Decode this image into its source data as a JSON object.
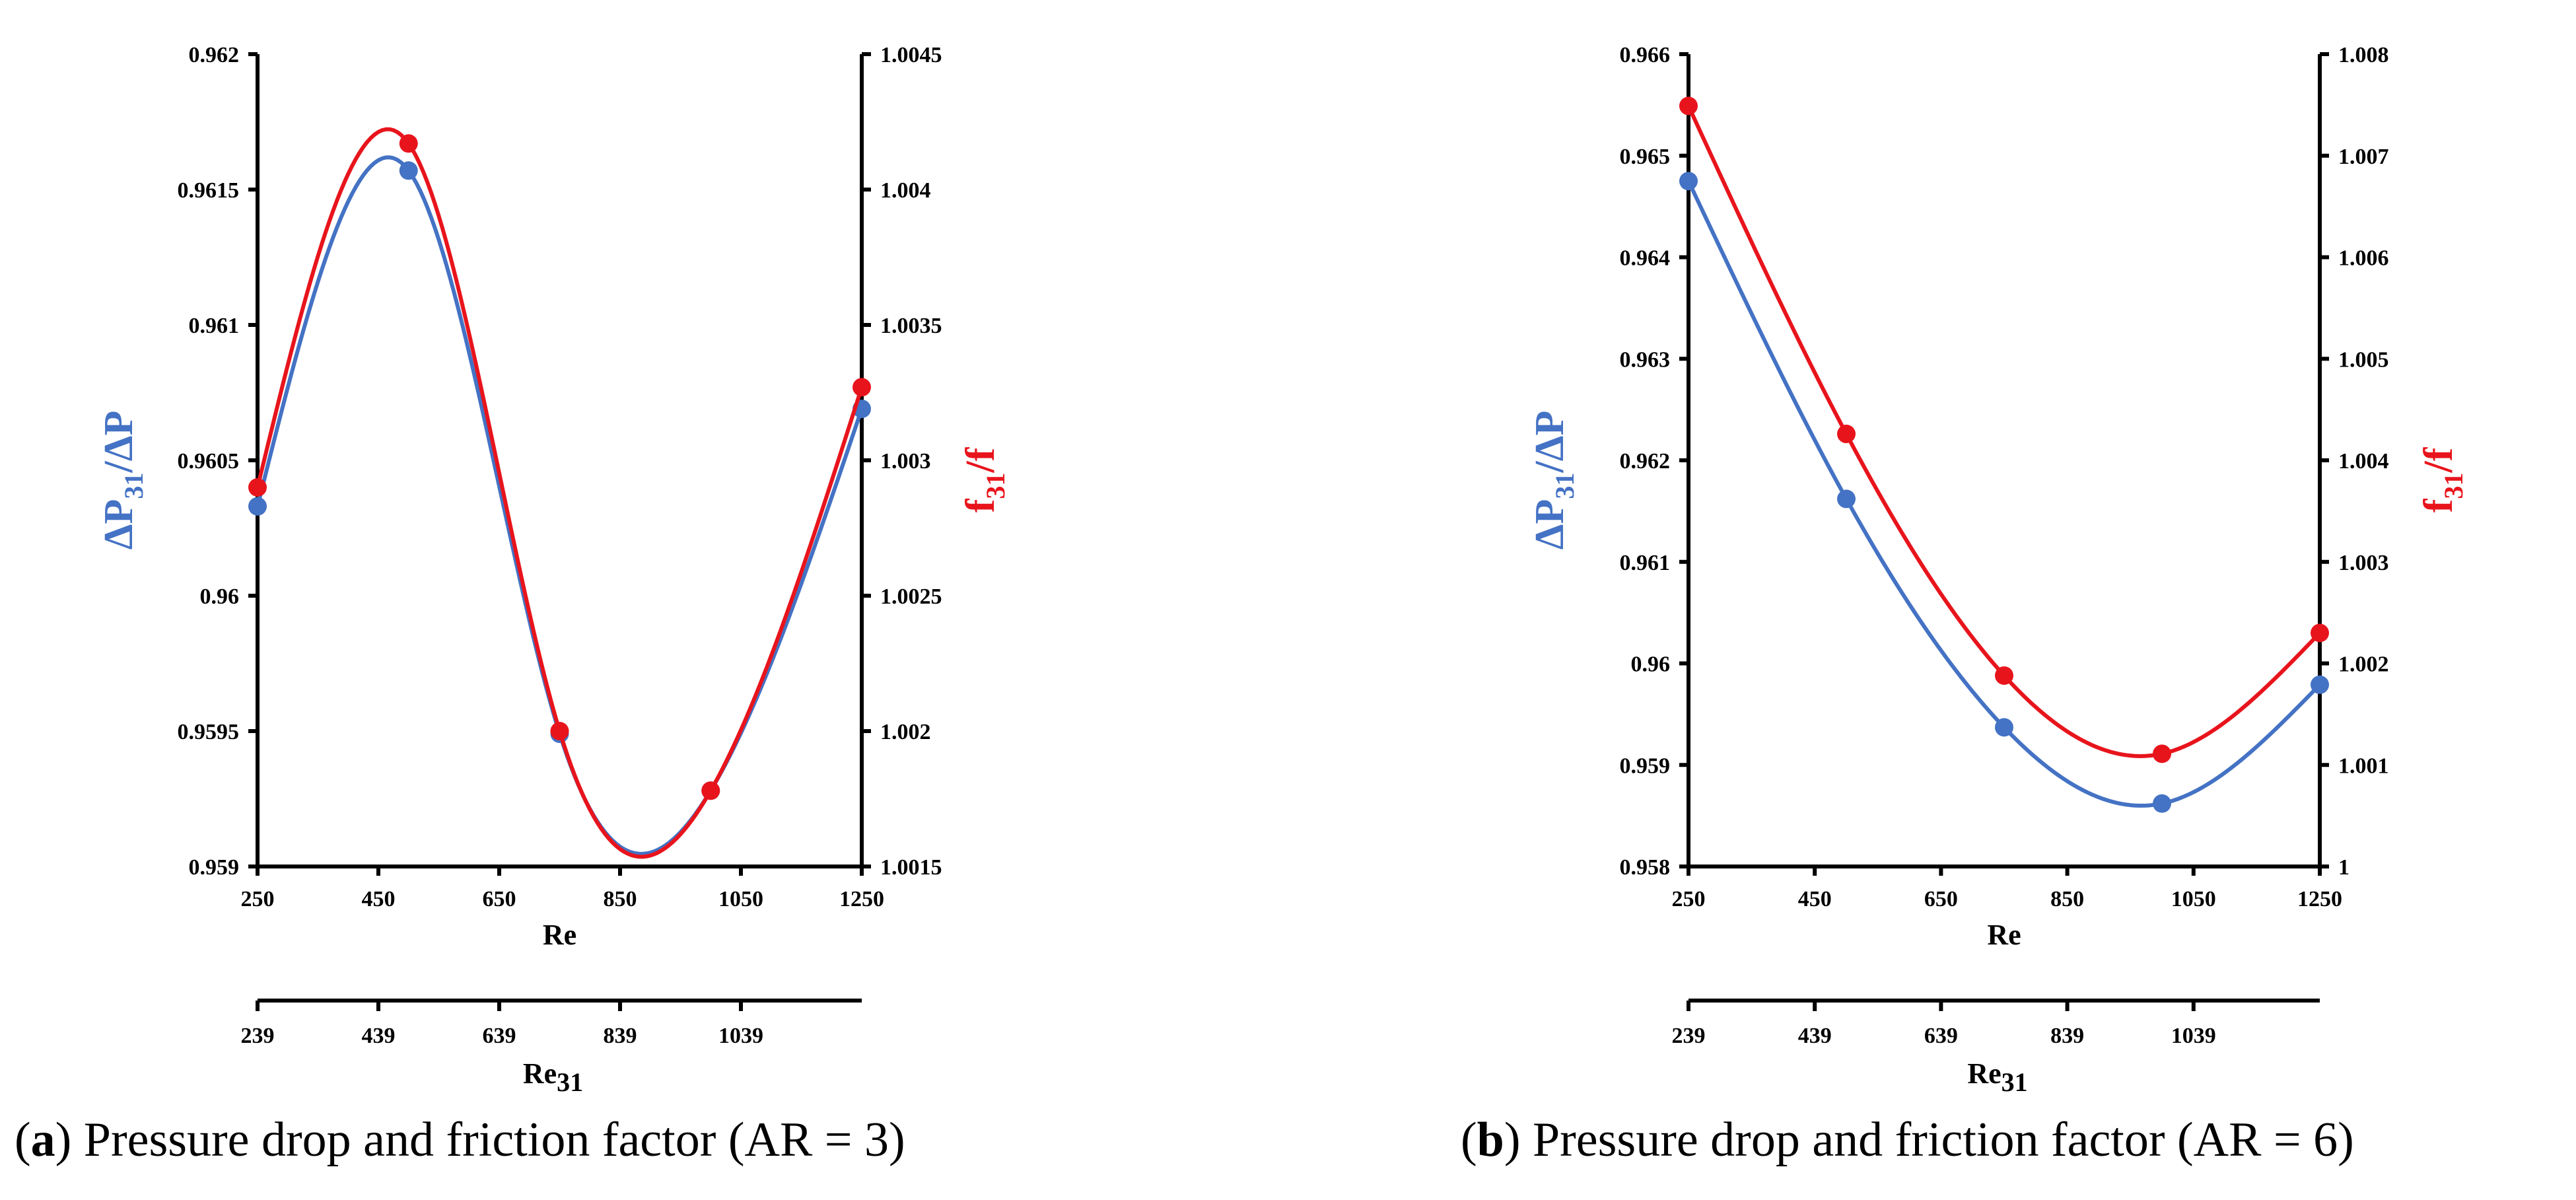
{
  "colors": {
    "blue": "#4472c4",
    "red": "#e8141c",
    "black": "#000000"
  },
  "panels": [
    {
      "caption": {
        "letter": "a",
        "text": ") Pressure drop and friction factor (AR = 3)"
      },
      "chart_data": {
        "type": "line",
        "title": "",
        "xlabel": "Re",
        "x_ticks": [
          "250",
          "450",
          "650",
          "850",
          "1050",
          "1250"
        ],
        "xlim": [
          250,
          1250
        ],
        "secondary_xlabel": {
          "main": "Re",
          "sub": "31"
        },
        "secondary_x_ticks": [
          "239",
          "439",
          "639",
          "839",
          "1039"
        ],
        "secondary_xlim": [
          239,
          1239
        ],
        "ylabel_left": {
          "pre": "ΔP",
          "sub": "31",
          "post": "/ΔP"
        },
        "ylim_left": [
          0.959,
          0.962
        ],
        "y_ticks_left": [
          "0.959",
          "0.9595",
          "0.96",
          "0.9605",
          "0.961",
          "0.9615",
          "0.962"
        ],
        "ylabel_right": {
          "pre": "f",
          "sub": "31",
          "post": "/f"
        },
        "ylim_right": [
          1.0015,
          1.0045
        ],
        "y_ticks_right": [
          "1.0015",
          "1.002",
          "1.0025",
          "1.003",
          "1.0035",
          "1.004",
          "1.0045"
        ],
        "series": [
          {
            "name": "ΔP31/ΔP",
            "axis": "left",
            "color": "#4472c4",
            "x": [
              250,
              500,
              750,
              1000,
              1250
            ],
            "values": [
              0.96033,
              0.96157,
              0.95949,
              0.95928,
              0.96069
            ]
          },
          {
            "name": "f31/f",
            "axis": "right",
            "color": "#e8141c",
            "x": [
              250,
              500,
              750,
              1000,
              1250
            ],
            "values": [
              1.0029,
              1.00417,
              1.002,
              1.00178,
              1.00327
            ]
          }
        ]
      }
    },
    {
      "caption": {
        "letter": "b",
        "text": ") Pressure drop and friction factor (AR = 6)"
      },
      "chart_data": {
        "type": "line",
        "title": "",
        "xlabel": "Re",
        "x_ticks": [
          "250",
          "450",
          "650",
          "850",
          "1050",
          "1250"
        ],
        "xlim": [
          250,
          1250
        ],
        "secondary_xlabel": {
          "main": "Re",
          "sub": "31"
        },
        "secondary_x_ticks": [
          "239",
          "439",
          "639",
          "839",
          "1039"
        ],
        "secondary_xlim": [
          239,
          1239
        ],
        "ylabel_left": {
          "pre": "ΔP",
          "sub": "31",
          "post": "/ΔP"
        },
        "ylim_left": [
          0.958,
          0.966
        ],
        "y_ticks_left": [
          "0.958",
          "0.959",
          "0.96",
          "0.961",
          "0.962",
          "0.963",
          "0.964",
          "0.965",
          "0.966"
        ],
        "ylabel_right": {
          "pre": "f",
          "sub": "31",
          "post": "/f"
        },
        "ylim_right": [
          1,
          1.008
        ],
        "y_ticks_right": [
          "1",
          "1.001",
          "1.002",
          "1.003",
          "1.004",
          "1.005",
          "1.006",
          "1.007",
          "1.008"
        ],
        "series": [
          {
            "name": "ΔP31/ΔP",
            "axis": "left",
            "color": "#4472c4",
            "x": [
              250,
              500,
              750,
              1000,
              1250
            ],
            "values": [
              0.96475,
              0.96162,
              0.95937,
              0.95862,
              0.95979
            ]
          },
          {
            "name": "f31/f",
            "axis": "right",
            "color": "#e8141c",
            "x": [
              250,
              500,
              750,
              1000,
              1250
            ],
            "values": [
              1.00749,
              1.00426,
              1.00188,
              1.00111,
              1.0023
            ]
          }
        ]
      }
    }
  ]
}
